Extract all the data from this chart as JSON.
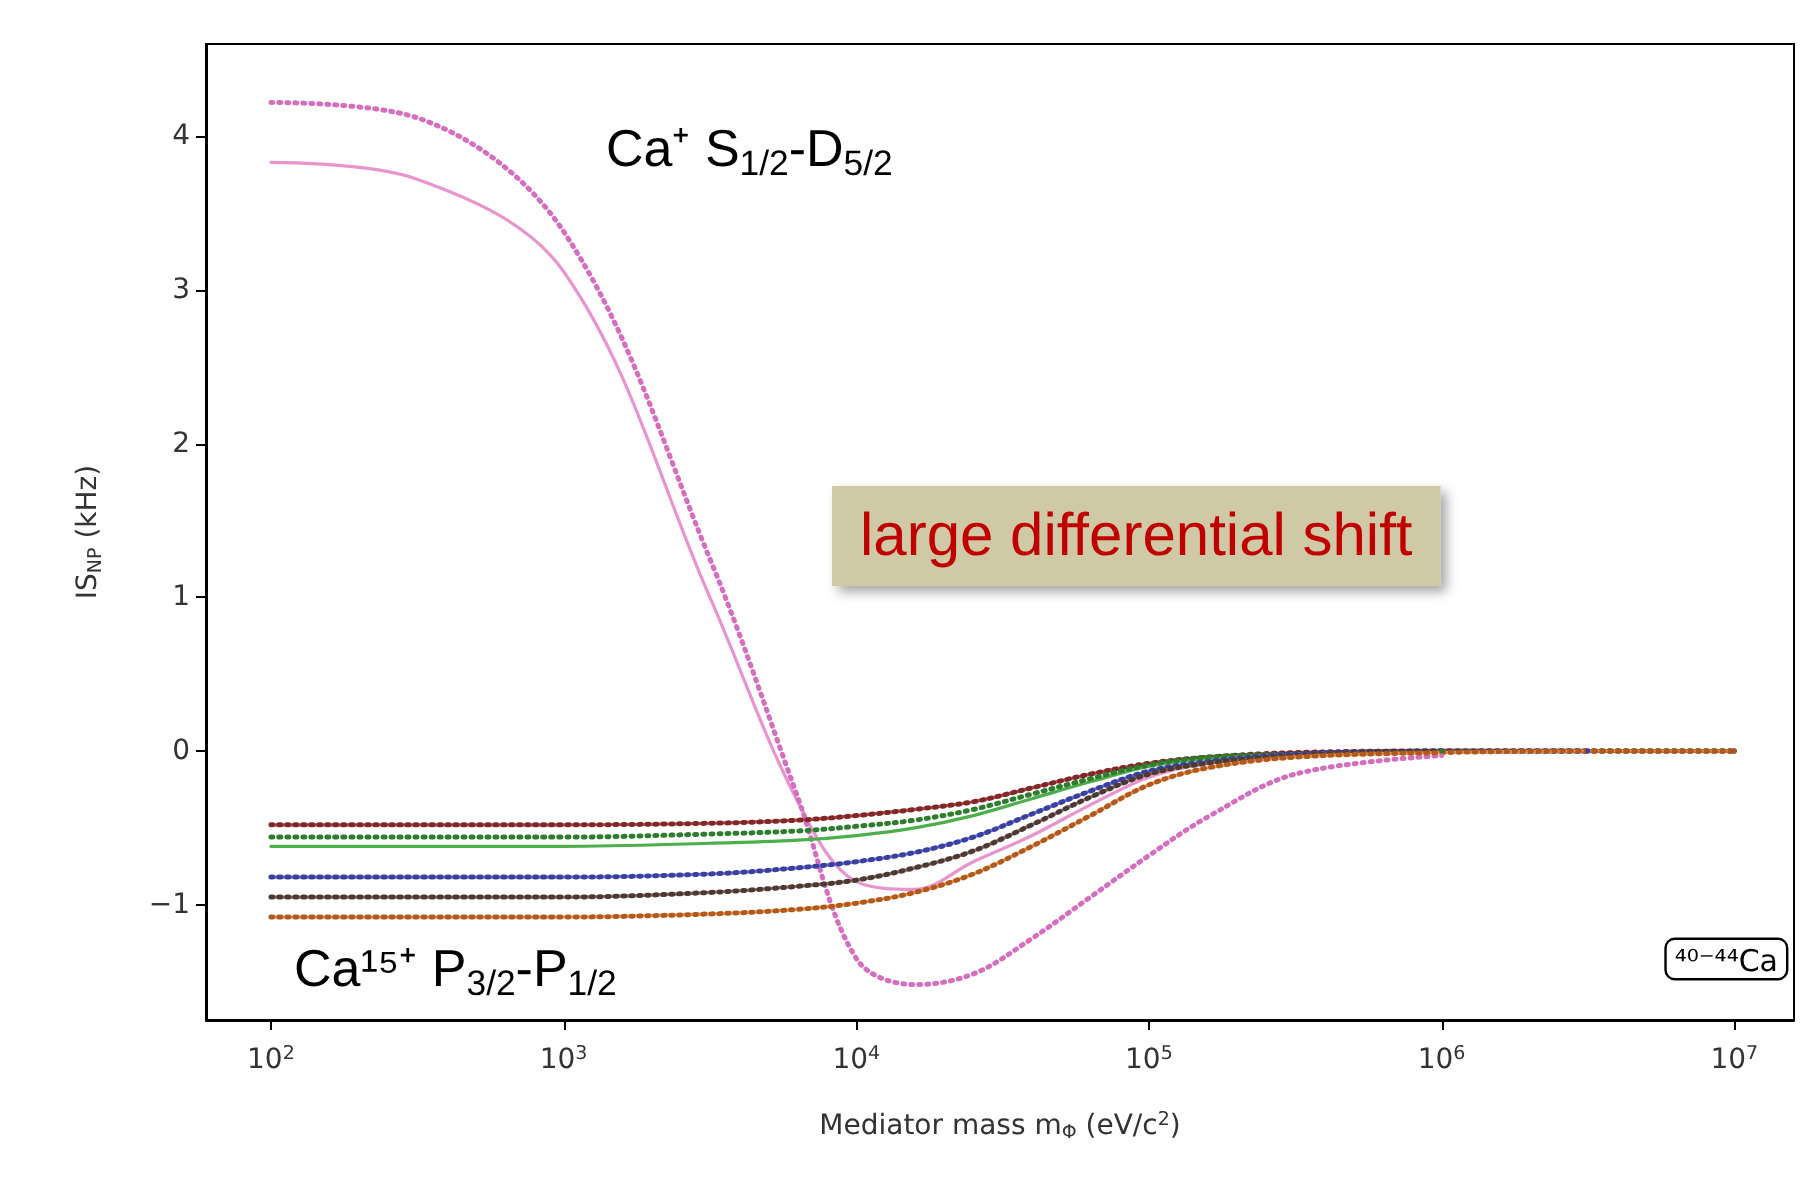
{
  "chart_data": {
    "type": "line",
    "xlabel": "Mediator mass m$_{Φ}$ (eV/c$^{2}$)",
    "ylabel": "IS$_{NP}$ (kHz)",
    "log": "x",
    "grid": false,
    "marker": "none",
    "xlim": [
      60,
      16000000
    ],
    "ylim": [
      -1.75,
      4.6
    ],
    "xticks": [
      {
        "value": 100,
        "label": "10$^{2}$"
      },
      {
        "value": 1000,
        "label": "10$^{3}$"
      },
      {
        "value": 10000,
        "label": "10$^{4}$"
      },
      {
        "value": 100000,
        "label": "10$^{5}$"
      },
      {
        "value": 1000000,
        "label": "10$^{6}$"
      },
      {
        "value": 10000000,
        "label": "10$^{7}$"
      }
    ],
    "yticks": [
      {
        "value": -1,
        "label": "−1"
      },
      0,
      1,
      2,
      3,
      4
    ],
    "x": [
      100,
      316,
      1000,
      3162,
      6310,
      10000,
      15850,
      25120,
      39810,
      63100,
      100000,
      158500,
      316200,
      1000000,
      3162000,
      10000000
    ],
    "series": [
      {
        "color": "#e994cf",
        "line_style": "solid",
        "values": [
          3.83,
          3.72,
          3.12,
          1.0,
          -0.33,
          -0.85,
          -0.9,
          -0.72,
          -0.55,
          -0.35,
          -0.17,
          -0.08,
          -0.03,
          0,
          0,
          0
        ]
      },
      {
        "color": "#d66ec0",
        "line_style": "dotted",
        "values": [
          4.22,
          4.12,
          3.38,
          1.25,
          -0.3,
          -1.35,
          -1.52,
          -1.45,
          -1.22,
          -0.95,
          -0.68,
          -0.43,
          -0.15,
          -0.03,
          null,
          null
        ]
      },
      {
        "color": "#e03c3c",
        "line_style": "solid",
        "values": [
          -0.48,
          -0.48,
          -0.48,
          -0.47,
          -0.45,
          -0.42,
          -0.38,
          -0.33,
          -0.24,
          -0.15,
          -0.08,
          -0.04,
          -0.01,
          0,
          0,
          0
        ]
      },
      {
        "color": "#7a2a2a",
        "line_style": "dotted",
        "values": [
          -0.48,
          -0.48,
          -0.48,
          -0.47,
          -0.45,
          -0.42,
          -0.38,
          -0.33,
          -0.24,
          -0.15,
          -0.08,
          -0.04,
          -0.01,
          0,
          0,
          0
        ]
      },
      {
        "color": "#4caf4c",
        "line_style": "solid",
        "values": [
          -0.62,
          -0.62,
          -0.62,
          -0.6,
          -0.58,
          -0.55,
          -0.5,
          -0.42,
          -0.31,
          -0.2,
          -0.1,
          -0.05,
          -0.02,
          0,
          null,
          null
        ]
      },
      {
        "color": "#2e7d2e",
        "line_style": "dotted",
        "values": [
          -0.56,
          -0.56,
          -0.56,
          -0.54,
          -0.52,
          -0.49,
          -0.45,
          -0.38,
          -0.28,
          -0.18,
          -0.09,
          -0.04,
          -0.02,
          0,
          null,
          null
        ]
      },
      {
        "color": "#6a78d8",
        "line_style": "solid",
        "values": [
          -0.82,
          -0.82,
          -0.82,
          -0.8,
          -0.76,
          -0.72,
          -0.66,
          -0.56,
          -0.41,
          -0.26,
          -0.13,
          -0.07,
          -0.02,
          0,
          0,
          0
        ]
      },
      {
        "color": "#3a3fa0",
        "line_style": "dotted",
        "values": [
          -0.82,
          -0.82,
          -0.82,
          -0.8,
          -0.76,
          -0.72,
          -0.66,
          -0.56,
          -0.41,
          -0.26,
          -0.13,
          -0.07,
          -0.02,
          0,
          0,
          null
        ]
      },
      {
        "color": "#a0685a",
        "line_style": "solid",
        "values": [
          -0.95,
          -0.95,
          -0.95,
          -0.92,
          -0.88,
          -0.84,
          -0.76,
          -0.65,
          -0.48,
          -0.3,
          -0.15,
          -0.08,
          -0.03,
          0,
          0,
          0
        ]
      },
      {
        "color": "#4a3a35",
        "line_style": "dotted",
        "values": [
          -0.95,
          -0.95,
          -0.95,
          -0.92,
          -0.88,
          -0.84,
          -0.76,
          -0.65,
          -0.48,
          -0.3,
          -0.15,
          -0.08,
          -0.03,
          0,
          0,
          0
        ]
      },
      {
        "color": "#ff9a40",
        "line_style": "solid",
        "values": [
          -1.08,
          -1.08,
          -1.08,
          -1.06,
          -1.03,
          -0.99,
          -0.92,
          -0.8,
          -0.62,
          -0.42,
          -0.22,
          -0.11,
          -0.04,
          -0.01,
          0,
          0
        ]
      },
      {
        "color": "#b05a20",
        "line_style": "dotted",
        "values": [
          -1.08,
          -1.08,
          -1.08,
          -1.06,
          -1.03,
          -0.99,
          -0.92,
          -0.8,
          -0.62,
          -0.42,
          -0.22,
          -0.11,
          -0.04,
          -0.01,
          0,
          0
        ]
      }
    ],
    "annotations": [
      "Ca⁺ S$_{1/2}$-D$_{5/2}$",
      "Ca¹⁵⁺ P$_{3/2}$-P$_{1/2}$",
      "large differential shift",
      "⁴⁰⁻⁴⁴Ca"
    ]
  }
}
